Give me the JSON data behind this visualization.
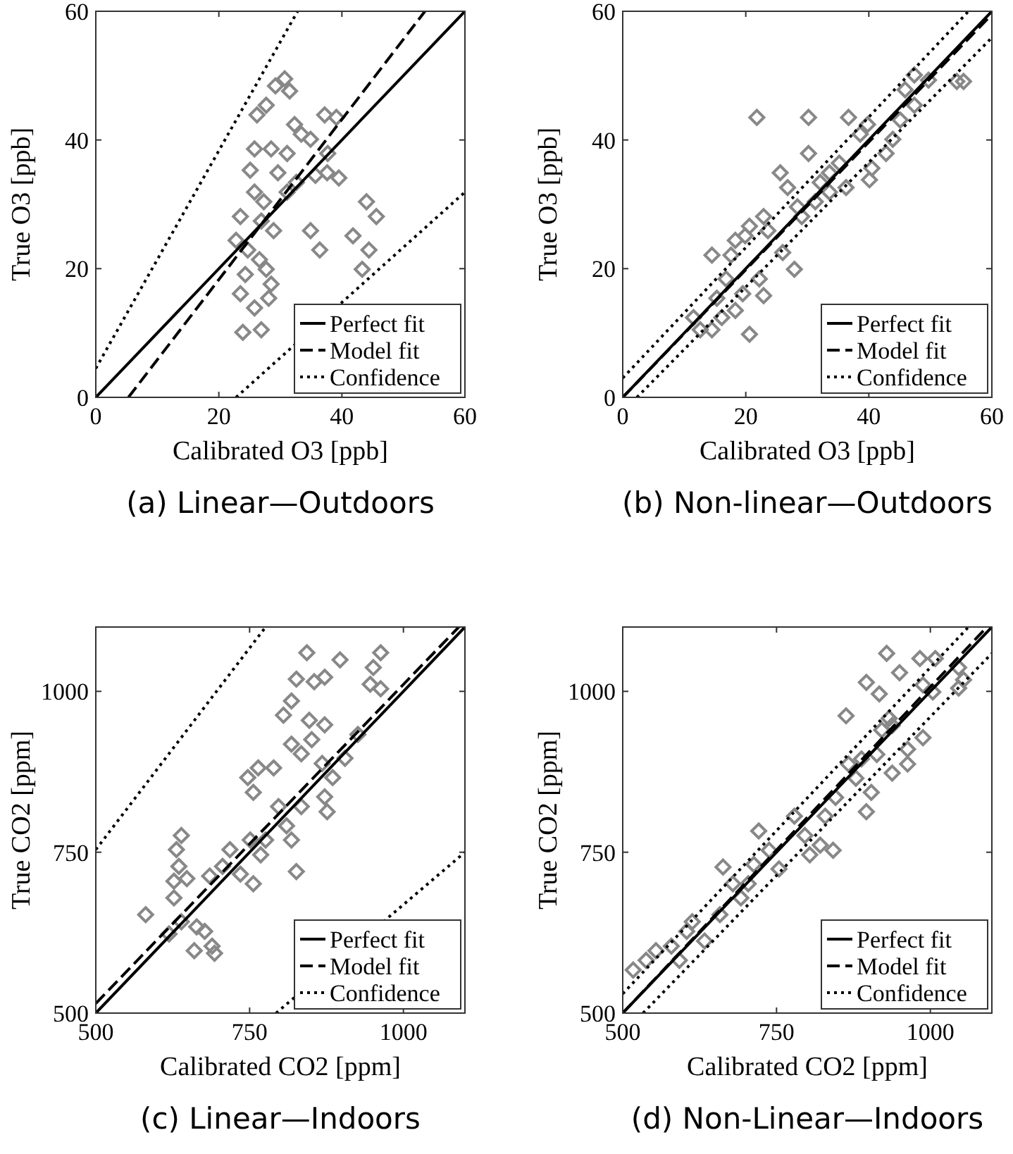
{
  "chart_data": [
    {
      "type": "scatter",
      "title": "(a) Linear—Outdoors",
      "xlabel": "Calibrated O3 [ppb]",
      "ylabel": "True O3 [ppb]",
      "xlim": [
        0,
        60
      ],
      "ylim": [
        0,
        60
      ],
      "xticks": [
        0,
        20,
        40,
        60
      ],
      "yticks": [
        0,
        20,
        40,
        60
      ],
      "legend": "bottom right",
      "series": [
        {
          "color": "#888888",
          "marker": "diamond",
          "x": [
            23.9,
            26.9,
            23.5,
            22.8,
            24.7,
            26.6,
            28.1,
            28.5,
            25.8,
            24.3,
            28.9,
            26.9,
            25.8,
            25.1,
            25.8,
            26.2,
            27.7,
            29.2,
            30.7,
            31.5,
            28.5,
            29.6,
            31.1,
            32.3,
            33.4,
            34.9,
            37.2,
            39.1,
            37.7,
            35.7,
            37.6,
            39.5,
            32.6,
            31.1,
            34.9,
            36.4,
            41.8,
            44.0,
            45.6,
            44.4,
            43.3,
            27.3,
            27.7,
            23.5
          ],
          "values": [
            10.1,
            10.5,
            16.1,
            24.4,
            22.9,
            21.4,
            15.4,
            17.6,
            13.9,
            19.1,
            25.9,
            27.4,
            31.9,
            35.3,
            38.6,
            43.9,
            45.4,
            48.4,
            49.5,
            47.6,
            38.6,
            34.9,
            37.9,
            42.4,
            40.9,
            40.1,
            43.9,
            43.5,
            37.9,
            34.5,
            34.9,
            34.1,
            33.4,
            31.9,
            25.9,
            22.9,
            25.1,
            30.4,
            28.1,
            22.9,
            19.9,
            30.4,
            19.9,
            28.1
          ]
        },
        {
          "type": "line",
          "name": "Perfect fit",
          "color": "#000000",
          "line_style": "solid",
          "marker": "none",
          "x": [
            0,
            60
          ],
          "values": [
            0,
            60
          ]
        },
        {
          "type": "line",
          "name": "Model fit",
          "color": "#000000",
          "line_style": "dashed",
          "marker": "none",
          "x": [
            5.3,
            53.5
          ],
          "values": [
            0,
            60
          ]
        },
        {
          "type": "line",
          "name": "Confidence",
          "color": "#000000",
          "line_style": "dotted",
          "marker": "none",
          "x": [
            0,
            32.8
          ],
          "values": [
            4.5,
            60
          ]
        },
        {
          "type": "line",
          "color": "#000000",
          "line_style": "dotted",
          "marker": "none",
          "x": [
            22.8,
            60
          ],
          "values": [
            0,
            31.9
          ]
        }
      ]
    },
    {
      "type": "scatter",
      "title": "(b) Non-linear—Outdoors",
      "xlabel": "Calibrated O3 [ppb]",
      "ylabel": "True O3 [ppb]",
      "xlim": [
        0,
        60
      ],
      "ylim": [
        0,
        60
      ],
      "xticks": [
        0,
        20,
        40,
        60
      ],
      "yticks": [
        0,
        20,
        40,
        60
      ],
      "legend": "bottom right",
      "series": [
        {
          "color": "#888888",
          "marker": "diamond",
          "x": [
            21.8,
            30.2,
            20.6,
            14.5,
            12.6,
            14.5,
            16.1,
            18.3,
            19.5,
            22.9,
            22.2,
            27.9,
            26.0,
            17.6,
            18.3,
            19.9,
            20.6,
            22.9,
            25.6,
            26.8,
            28.4,
            30.2,
            32.1,
            33.6,
            35.2,
            36.3,
            36.7,
            38.6,
            40.1,
            40.5,
            42.8,
            43.9,
            45.1,
            45.9,
            47.4,
            49.7,
            47.4,
            54.3,
            55.4,
            39.8,
            31.3,
            23.6,
            15.3,
            16.8,
            11.5,
            29.1,
            33.6
          ],
          "values": [
            43.5,
            43.5,
            9.8,
            22.1,
            10.5,
            10.5,
            12.4,
            13.5,
            16.1,
            15.8,
            18.4,
            19.9,
            22.5,
            22.1,
            24.4,
            25.1,
            26.6,
            28.1,
            34.9,
            32.6,
            29.6,
            37.9,
            33.4,
            34.9,
            36.4,
            32.6,
            43.5,
            40.9,
            33.8,
            35.6,
            37.9,
            40.1,
            43.1,
            47.8,
            50.1,
            49.3,
            45.4,
            49.1,
            49.1,
            42.4,
            30.4,
            25.9,
            15.4,
            18.4,
            12.4,
            28.1,
            31.9
          ]
        },
        {
          "type": "line",
          "name": "Perfect fit",
          "color": "#000000",
          "line_style": "solid",
          "marker": "none",
          "x": [
            0,
            60
          ],
          "values": [
            0,
            60
          ]
        },
        {
          "type": "line",
          "name": "Model fit",
          "color": "#000000",
          "line_style": "dashed",
          "marker": "none",
          "x": [
            0,
            60
          ],
          "values": [
            0,
            59.5
          ]
        },
        {
          "type": "line",
          "name": "Confidence",
          "color": "#000000",
          "line_style": "dotted",
          "marker": "none",
          "x": [
            0,
            56.2
          ],
          "values": [
            3,
            60
          ]
        },
        {
          "type": "line",
          "color": "#000000",
          "line_style": "dotted",
          "marker": "none",
          "x": [
            2.3,
            60
          ],
          "values": [
            0,
            55.9
          ]
        }
      ]
    },
    {
      "type": "scatter",
      "title": "(c) Linear—Indoors",
      "xlabel": "Calibrated CO2 [ppm]",
      "ylabel": "True CO2 [ppm]",
      "xlim": [
        500,
        1100
      ],
      "ylim": [
        500,
        1100
      ],
      "xticks": [
        500,
        750,
        1000
      ],
      "yticks": [
        500,
        750,
        1000
      ],
      "legend": "bottom right",
      "series": [
        {
          "color": "#888888",
          "marker": "diamond",
          "x": [
            581,
            619,
            639,
            639,
            631,
            635,
            627,
            627,
            648,
            664,
            677,
            693,
            660,
            689,
            685,
            706,
            718,
            735,
            756,
            768,
            751,
            747,
            764,
            789,
            756,
            797,
            810,
            818,
            826,
            834,
            805,
            818,
            826,
            843,
            855,
            872,
            851,
            872,
            818,
            834,
            868,
            885,
            872,
            876,
            897,
            905,
            926,
            946,
            963,
            963,
            951,
            847,
            776
          ],
          "values": [
            653,
            623,
            642,
            776,
            754,
            728,
            705,
            679,
            709,
            634,
            627,
            593,
            597,
            604,
            713,
            728,
            754,
            716,
            701,
            746,
            769,
            866,
            881,
            881,
            843,
            821,
            791,
            769,
            720,
            821,
            963,
            985,
            1019,
            1060,
            1015,
            1022,
            925,
            948,
            918,
            903,
            888,
            866,
            836,
            813,
            1049,
            896,
            933,
            1011,
            1004,
            1060,
            1037,
            955,
            769
          ]
        },
        {
          "type": "line",
          "name": "Perfect fit",
          "color": "#000000",
          "line_style": "solid",
          "marker": "none",
          "x": [
            500,
            1100
          ],
          "values": [
            500,
            1100
          ]
        },
        {
          "type": "line",
          "name": "Model fit",
          "color": "#000000",
          "line_style": "dashed",
          "marker": "none",
          "x": [
            500,
            1090
          ],
          "values": [
            515,
            1100
          ]
        },
        {
          "type": "line",
          "name": "Confidence",
          "color": "#000000",
          "line_style": "dotted",
          "marker": "none",
          "x": [
            500,
            776
          ],
          "values": [
            754,
            1100
          ]
        },
        {
          "type": "line",
          "color": "#000000",
          "line_style": "dotted",
          "marker": "none",
          "x": [
            793,
            1100
          ],
          "values": [
            500,
            750
          ]
        }
      ]
    },
    {
      "type": "scatter",
      "title": "(d) Non-Linear—Indoors",
      "xlabel": "Calibrated CO2 [ppm]",
      "ylabel": "True CO2 [ppm]",
      "xlim": [
        500,
        1100
      ],
      "ylim": [
        500,
        1100
      ],
      "xticks": [
        500,
        750,
        1000
      ],
      "yticks": [
        500,
        750,
        1000
      ],
      "legend": "bottom right",
      "series": [
        {
          "color": "#888888",
          "marker": "diamond",
          "x": [
            517,
            538,
            554,
            579,
            592,
            604,
            613,
            633,
            658,
            663,
            679,
            692,
            713,
            721,
            738,
            754,
            704,
            779,
            796,
            804,
            821,
            842,
            829,
            846,
            867,
            879,
            888,
            896,
            904,
            896,
            917,
            929,
            863,
            933,
            938,
            950,
            963,
            988,
            963,
            938,
            913,
            983,
            1008,
            988,
            1046,
            1054,
            1004,
            1046,
            921
          ],
          "values": [
            567,
            582,
            597,
            604,
            582,
            627,
            642,
            612,
            653,
            727,
            701,
            679,
            731,
            783,
            753,
            724,
            701,
            806,
            776,
            746,
            761,
            753,
            806,
            835,
            887,
            865,
            895,
            813,
            843,
            1014,
            996,
            1059,
            962,
            958,
            947,
            1029,
            910,
            928,
            887,
            873,
            902,
            1051,
            1051,
            1010,
            1005,
            1018,
            999,
            1037,
            940
          ]
        },
        {
          "type": "line",
          "name": "Perfect fit",
          "color": "#000000",
          "line_style": "solid",
          "marker": "none",
          "x": [
            500,
            1100
          ],
          "values": [
            500,
            1100
          ]
        },
        {
          "type": "line",
          "name": "Model fit",
          "color": "#000000",
          "line_style": "dashed",
          "marker": "none",
          "x": [
            500,
            1092
          ],
          "values": [
            500,
            1100
          ]
        },
        {
          "type": "line",
          "name": "Confidence",
          "color": "#000000",
          "line_style": "dotted",
          "marker": "none",
          "x": [
            500,
            1062
          ],
          "values": [
            530,
            1100
          ]
        },
        {
          "type": "line",
          "color": "#000000",
          "line_style": "dotted",
          "marker": "none",
          "x": [
            533,
            1100
          ],
          "values": [
            500,
            1059
          ]
        }
      ]
    }
  ]
}
